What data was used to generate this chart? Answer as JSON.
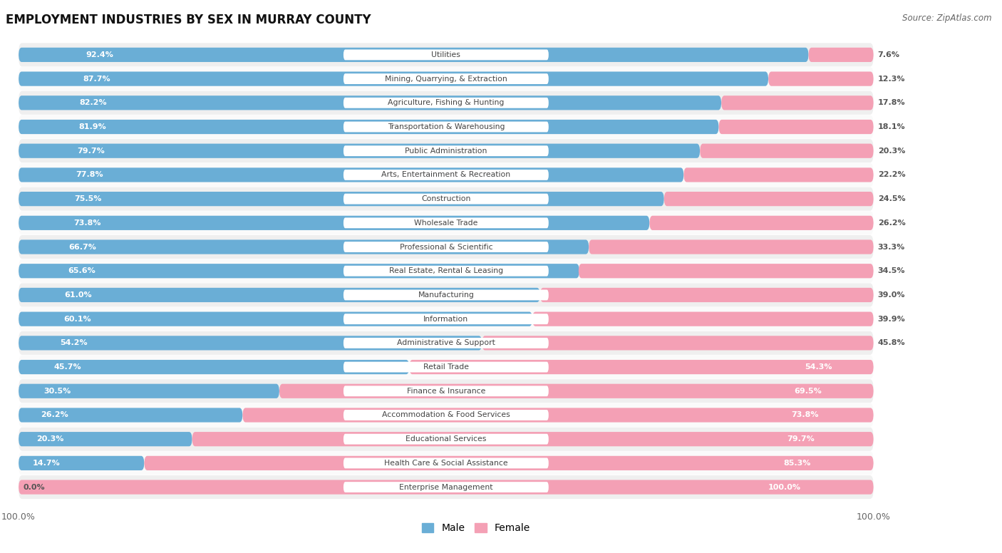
{
  "title": "EMPLOYMENT INDUSTRIES BY SEX IN MURRAY COUNTY",
  "source": "Source: ZipAtlas.com",
  "categories": [
    "Utilities",
    "Mining, Quarrying, & Extraction",
    "Agriculture, Fishing & Hunting",
    "Transportation & Warehousing",
    "Public Administration",
    "Arts, Entertainment & Recreation",
    "Construction",
    "Wholesale Trade",
    "Professional & Scientific",
    "Real Estate, Rental & Leasing",
    "Manufacturing",
    "Information",
    "Administrative & Support",
    "Retail Trade",
    "Finance & Insurance",
    "Accommodation & Food Services",
    "Educational Services",
    "Health Care & Social Assistance",
    "Enterprise Management"
  ],
  "male": [
    92.4,
    87.7,
    82.2,
    81.9,
    79.7,
    77.8,
    75.5,
    73.8,
    66.7,
    65.6,
    61.0,
    60.1,
    54.2,
    45.7,
    30.5,
    26.2,
    20.3,
    14.7,
    0.0
  ],
  "female": [
    7.6,
    12.3,
    17.8,
    18.1,
    20.3,
    22.2,
    24.5,
    26.2,
    33.3,
    34.5,
    39.0,
    39.9,
    45.8,
    54.3,
    69.5,
    73.8,
    79.7,
    85.3,
    100.0
  ],
  "male_color": "#6aaed6",
  "female_color": "#f4a0b5",
  "row_bg_even": "#efefef",
  "row_bg_odd": "#fafafa",
  "bg_color": "#ffffff",
  "title_fontsize": 12,
  "bar_height": 0.6,
  "total_width": 100.0,
  "male_pct_labels": [
    "92.4%",
    "87.7%",
    "82.2%",
    "81.9%",
    "79.7%",
    "77.8%",
    "75.5%",
    "73.8%",
    "66.7%",
    "65.6%",
    "61.0%",
    "60.1%",
    "54.2%",
    "45.7%",
    "30.5%",
    "26.2%",
    "20.3%",
    "14.7%",
    "0.0%"
  ],
  "female_pct_labels": [
    "7.6%",
    "12.3%",
    "17.8%",
    "18.1%",
    "20.3%",
    "22.2%",
    "24.5%",
    "26.2%",
    "33.3%",
    "34.5%",
    "39.0%",
    "39.9%",
    "45.8%",
    "54.3%",
    "69.5%",
    "73.8%",
    "79.7%",
    "85.3%",
    "100.0%"
  ]
}
